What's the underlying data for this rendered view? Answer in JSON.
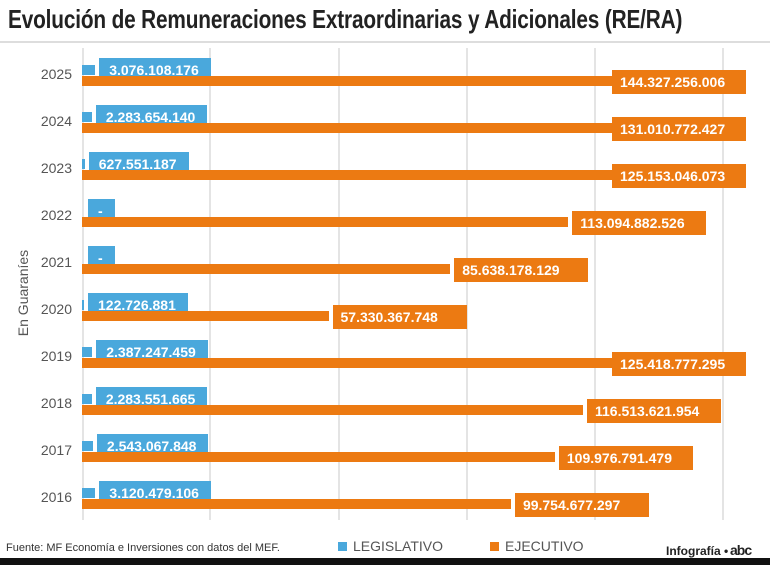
{
  "title": "Evolución de Remuneraciones Extraordinarias y Adicionales (RE/RA)",
  "source": "Fuente: MF Economía e Inversiones con datos del MEF.",
  "credit": "Infografía •",
  "logo": "abc",
  "colors": {
    "legislativo": "#4aa8dc",
    "ejecutivo": "#ec7a12"
  },
  "chart_data": {
    "type": "bar",
    "orientation": "horizontal",
    "title": "Evolución de Remuneraciones Extraordinarias y Adicionales (RE/RA)",
    "ylabel": "En Guaraníes",
    "xlabel": "",
    "grid": true,
    "legend_position": "bottom",
    "categories": [
      "2025",
      "2024",
      "2023",
      "2022",
      "2021",
      "2020",
      "2019",
      "2018",
      "2017",
      "2016"
    ],
    "series": [
      {
        "name": "LEGISLATIVO",
        "values": [
          3076108176,
          2283654140,
          627551187,
          null,
          null,
          122726881,
          2387247459,
          2283551665,
          2543067848,
          3120479106
        ],
        "labels": [
          "3.076.108.176",
          "2.283.654.140",
          "627.551.187",
          "-",
          "-",
          "122.726.881",
          "2.387.247.459",
          "2.283.551.665",
          "2.543.067.848",
          "3.120.479.106"
        ]
      },
      {
        "name": "EJECUTIVO",
        "values": [
          144327256006,
          131010772427,
          125153046073,
          113094882526,
          85638178129,
          57330367748,
          125418777295,
          116513621954,
          109976791479,
          99754677297
        ],
        "labels": [
          "144.327.256.006",
          "131.010.772.427",
          "125.153.046.073",
          "113.094.882.526",
          "85.638.178.129",
          "57.330.367.748",
          "125.418.777.295",
          "116.513.621.954",
          "109.976.791.479",
          "99.754.677.297"
        ]
      }
    ]
  }
}
